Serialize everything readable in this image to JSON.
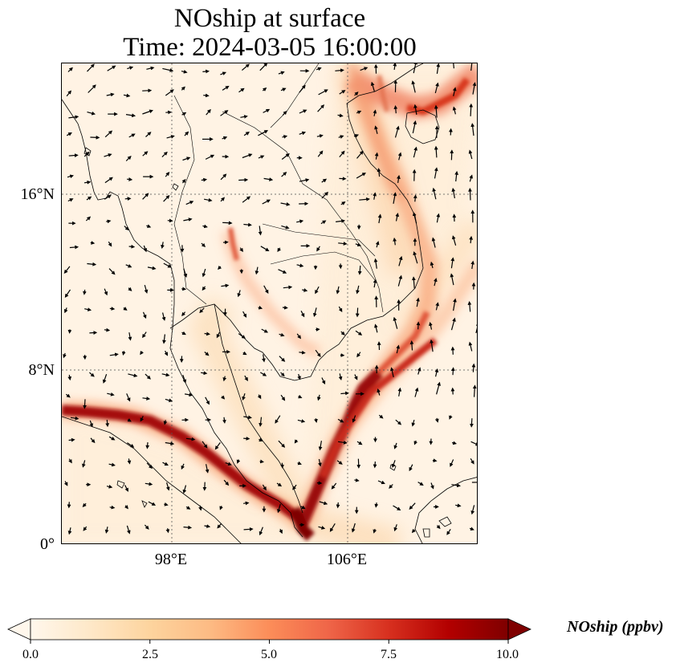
{
  "title": {
    "line1": "NOship at surface",
    "line2": "Time: 2024-03-05 16:00:00"
  },
  "map": {
    "latitude_labels": [
      "16°N",
      "8°N",
      "0°"
    ],
    "longitude_labels": [
      "98°E",
      "106°E"
    ],
    "gridlines": "dotted",
    "extent": {
      "lon_min": 93,
      "lon_max": 112,
      "lat_min": 0,
      "lat_max": 22
    }
  },
  "colorbar": {
    "label": "NOship (ppbv)",
    "ticks": [
      "0.0",
      "2.5",
      "5.0",
      "7.5",
      "10.0"
    ],
    "min": 0.0,
    "max": 10.0,
    "colormap": "OrRd",
    "colors": [
      "#fff7ec",
      "#fee8c8",
      "#fdd49e",
      "#fdbb84",
      "#fc8d59",
      "#ef6548",
      "#d7301f",
      "#b30000",
      "#7f0000"
    ],
    "extend": "both"
  },
  "colors": {
    "background": "#fff3e4",
    "coastline": "#000000",
    "wind_arrows": "#000000"
  }
}
